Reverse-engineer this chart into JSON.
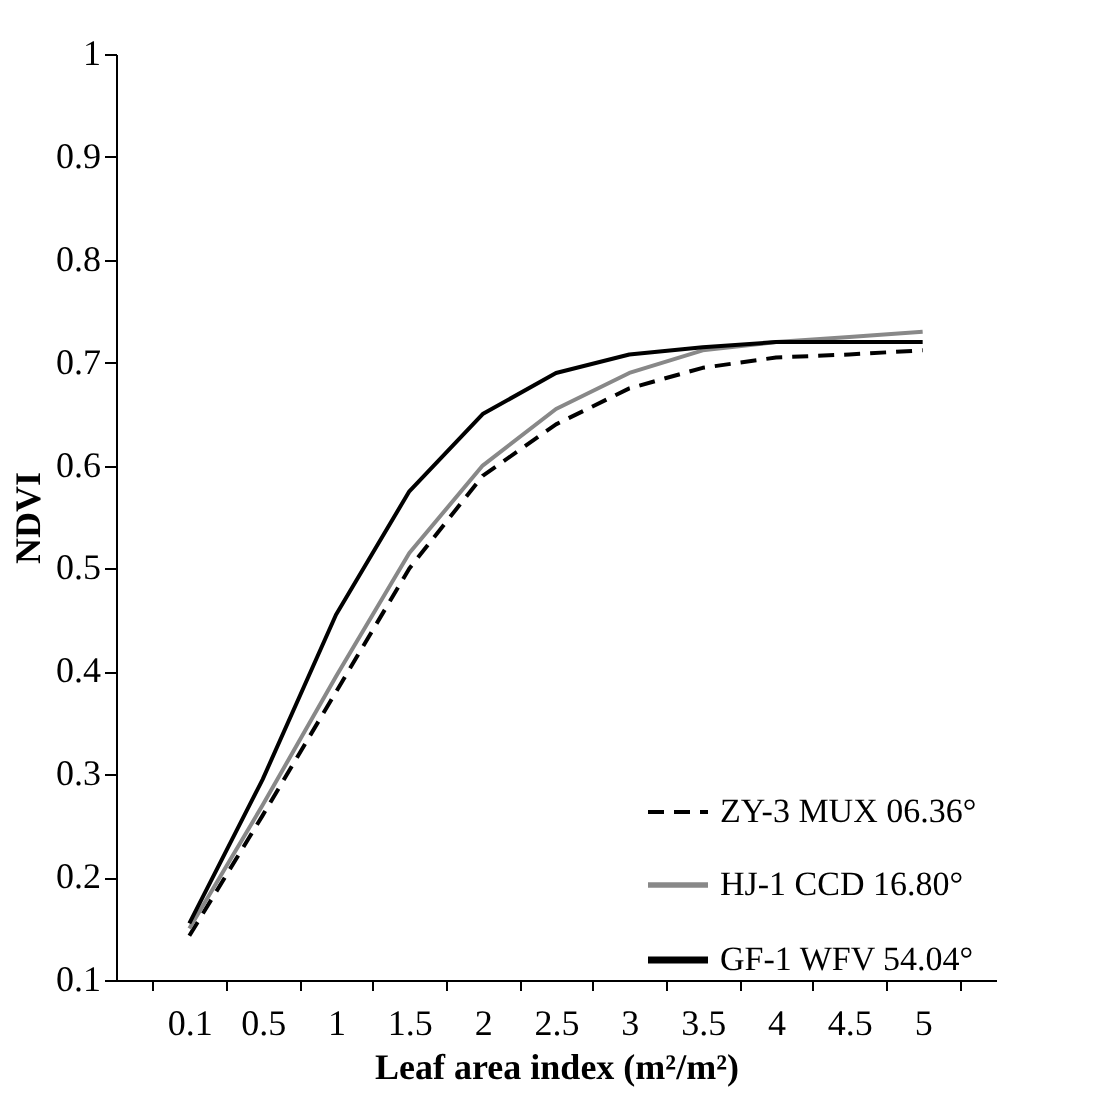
{
  "chart_data": {
    "type": "line",
    "xlabel": "Leaf area index (m²/m²)",
    "ylabel": "NDVI",
    "categories": [
      "0.1",
      "0.5",
      "1",
      "1.5",
      "2",
      "2.5",
      "3",
      "3.5",
      "4",
      "4.5",
      "5"
    ],
    "ylim": [
      0.1,
      1
    ],
    "yticks": [
      0.1,
      0.2,
      0.3,
      0.4,
      0.5,
      0.6,
      0.7,
      0.8,
      0.9,
      1
    ],
    "grid": false,
    "legend": "bottom right",
    "marker": "none",
    "series": [
      {
        "name": "ZY-3 MUX  06.36°",
        "color": "#000000",
        "line_style": "dashed",
        "values": [
          0.143,
          0.26,
          0.38,
          0.5,
          0.59,
          0.64,
          0.675,
          0.695,
          0.705,
          0.708,
          0.712
        ]
      },
      {
        "name": "HJ-1 CCD    16.80°",
        "color": "#888888",
        "line_style": "solid",
        "values": [
          0.15,
          0.27,
          0.395,
          0.515,
          0.6,
          0.655,
          0.69,
          0.712,
          0.72,
          0.725,
          0.73
        ]
      },
      {
        "name": "GF-1 WFV   54.04°",
        "color": "#000000",
        "line_style": "solid",
        "values": [
          0.155,
          0.295,
          0.455,
          0.575,
          0.65,
          0.69,
          0.708,
          0.715,
          0.72,
          0.72,
          0.72
        ]
      }
    ]
  }
}
